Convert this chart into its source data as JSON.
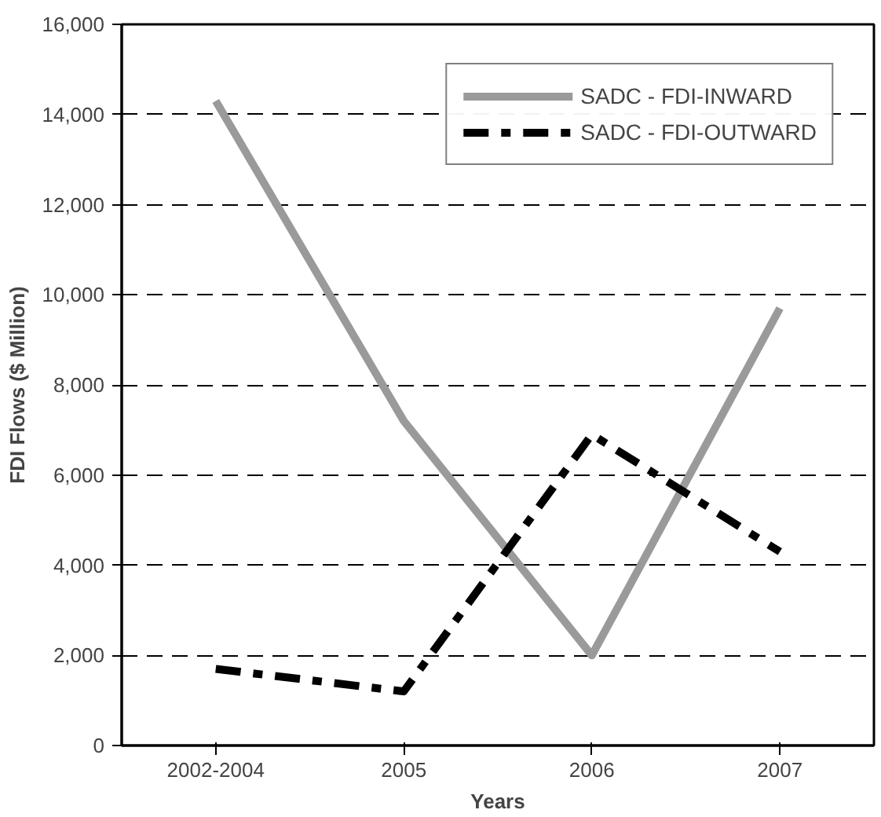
{
  "chart_data": {
    "type": "line",
    "xlabel": "Years",
    "ylabel": "FDI Flows ($ Million)",
    "categories": [
      "2002-2004",
      "2005",
      "2006",
      "2007"
    ],
    "series": [
      {
        "name": "SADC - FDI-INWARD",
        "color": "#9a9a9a",
        "line_style": "solid",
        "values": [
          14300,
          7200,
          2000,
          9700
        ]
      },
      {
        "name": "SADC - FDI-OUTWARD",
        "color": "#000000",
        "line_style": "dashed",
        "values": [
          1700,
          1200,
          6900,
          4300
        ]
      }
    ],
    "ylim": [
      0,
      16000
    ],
    "yticks": [
      {
        "value": 0,
        "label": "0"
      },
      {
        "value": 2000,
        "label": "2,000"
      },
      {
        "value": 4000,
        "label": "4,000"
      },
      {
        "value": 6000,
        "label": "6,000"
      },
      {
        "value": 8000,
        "label": "8,000"
      },
      {
        "value": 10000,
        "label": "10,000"
      },
      {
        "value": 12000,
        "label": "12,000"
      },
      {
        "value": 14000,
        "label": "14,000"
      },
      {
        "value": 16000,
        "label": "16,000"
      }
    ],
    "grid": "y",
    "legend": "top right"
  }
}
